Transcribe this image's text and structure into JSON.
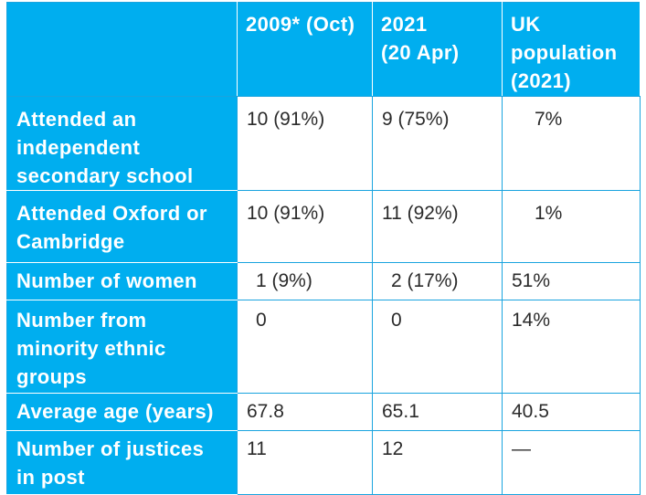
{
  "table": {
    "columns": [
      "",
      "2009* (Oct)",
      "2021 (20 Apr)",
      "UK population (2021)"
    ],
    "header_lines": [
      [
        "2009* (Oct)"
      ],
      [
        "2021",
        "(20 Apr)"
      ],
      [
        "UK",
        "population",
        "(2021)"
      ]
    ],
    "rows": [
      {
        "label_lines": [
          "Attended an",
          "independent",
          "secondary school"
        ],
        "cells": [
          "10 (91%)",
          "9 (75%)",
          "7%"
        ]
      },
      {
        "label_lines": [
          "Attended Oxford or",
          "Cambridge"
        ],
        "cells": [
          "10 (91%)",
          "11 (92%)",
          "1%"
        ]
      },
      {
        "label_lines": [
          "Number of women"
        ],
        "cells": [
          "1 (9%)",
          "2 (17%)",
          "51%"
        ]
      },
      {
        "label_lines": [
          "Number from",
          "minority ethnic",
          "groups"
        ],
        "cells": [
          "0",
          "0",
          "14%"
        ]
      },
      {
        "label_lines": [
          "Average age (years)"
        ],
        "cells": [
          "67.8",
          "65.1",
          "40.5"
        ]
      },
      {
        "label_lines": [
          "Number of justices",
          "in post"
        ],
        "cells": [
          "11",
          "12",
          "—"
        ]
      }
    ]
  },
  "colors": {
    "header_fill": "#00aeef",
    "header_text": "#ffffff",
    "body_text": "#2b2b2b",
    "border": "#1aa4df"
  }
}
